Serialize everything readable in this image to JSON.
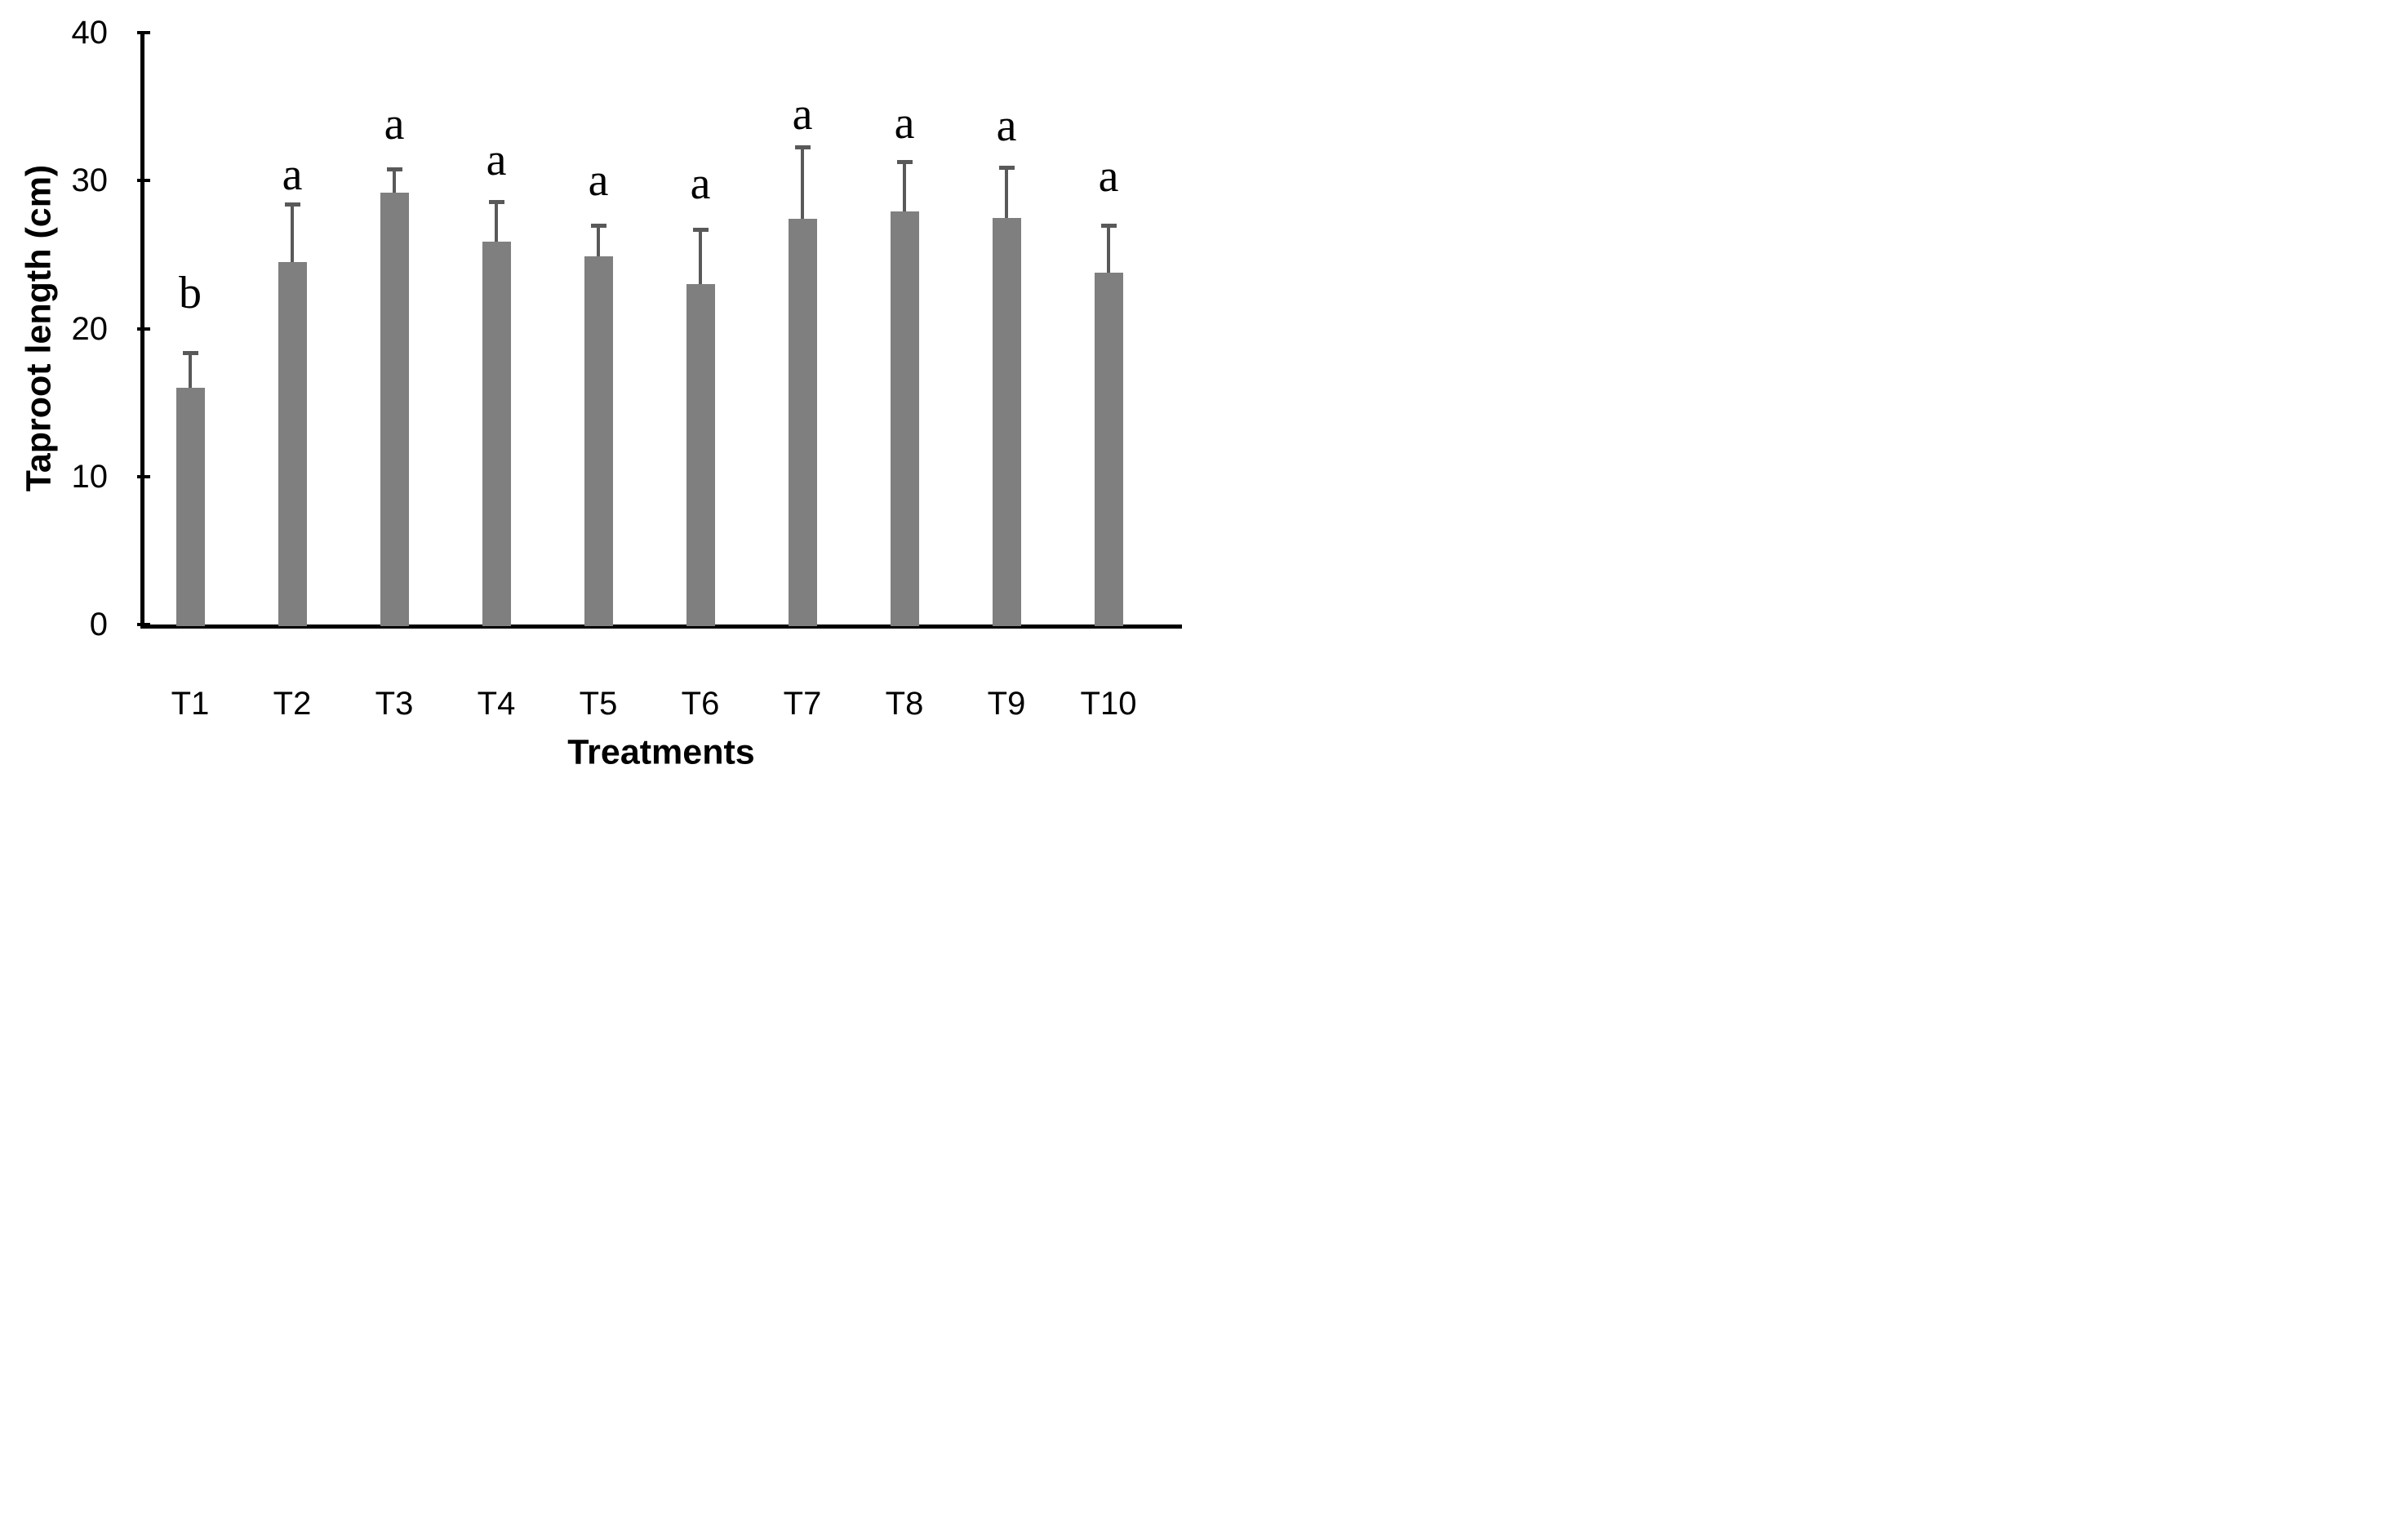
{
  "chart_data": {
    "type": "bar",
    "title": "",
    "xlabel": "Treatments",
    "ylabel": "Taproot length (cm)",
    "ylim": [
      0,
      40
    ],
    "yticks": [
      0,
      10,
      20,
      30,
      40
    ],
    "grid": false,
    "legend": false,
    "categories": [
      "T1",
      "T2",
      "T3",
      "T4",
      "T5",
      "T6",
      "T7",
      "T8",
      "T9",
      "T10"
    ],
    "series": [
      {
        "name": "Taproot length",
        "values": [
          16.0,
          24.5,
          29.2,
          25.9,
          24.9,
          23.0,
          27.4,
          27.9,
          27.5,
          23.8
        ],
        "error_bar_tops": [
          18.4,
          28.4,
          30.8,
          28.6,
          27.0,
          26.7,
          32.3,
          31.3,
          30.9,
          27.0
        ],
        "sig_letters": [
          "b",
          "a",
          "a",
          "a",
          "a",
          "a",
          "a",
          "a",
          "a",
          "a"
        ],
        "sig_letter_y": [
          22.4,
          30.4,
          33.8,
          31.4,
          30.0,
          29.8,
          34.5,
          33.9,
          33.7,
          30.3
        ]
      }
    ],
    "colors": {
      "bar": "#7f7f7f",
      "error_bar": "#595959",
      "axis": "#000000",
      "text": "#000000",
      "background": "#ffffff"
    }
  }
}
